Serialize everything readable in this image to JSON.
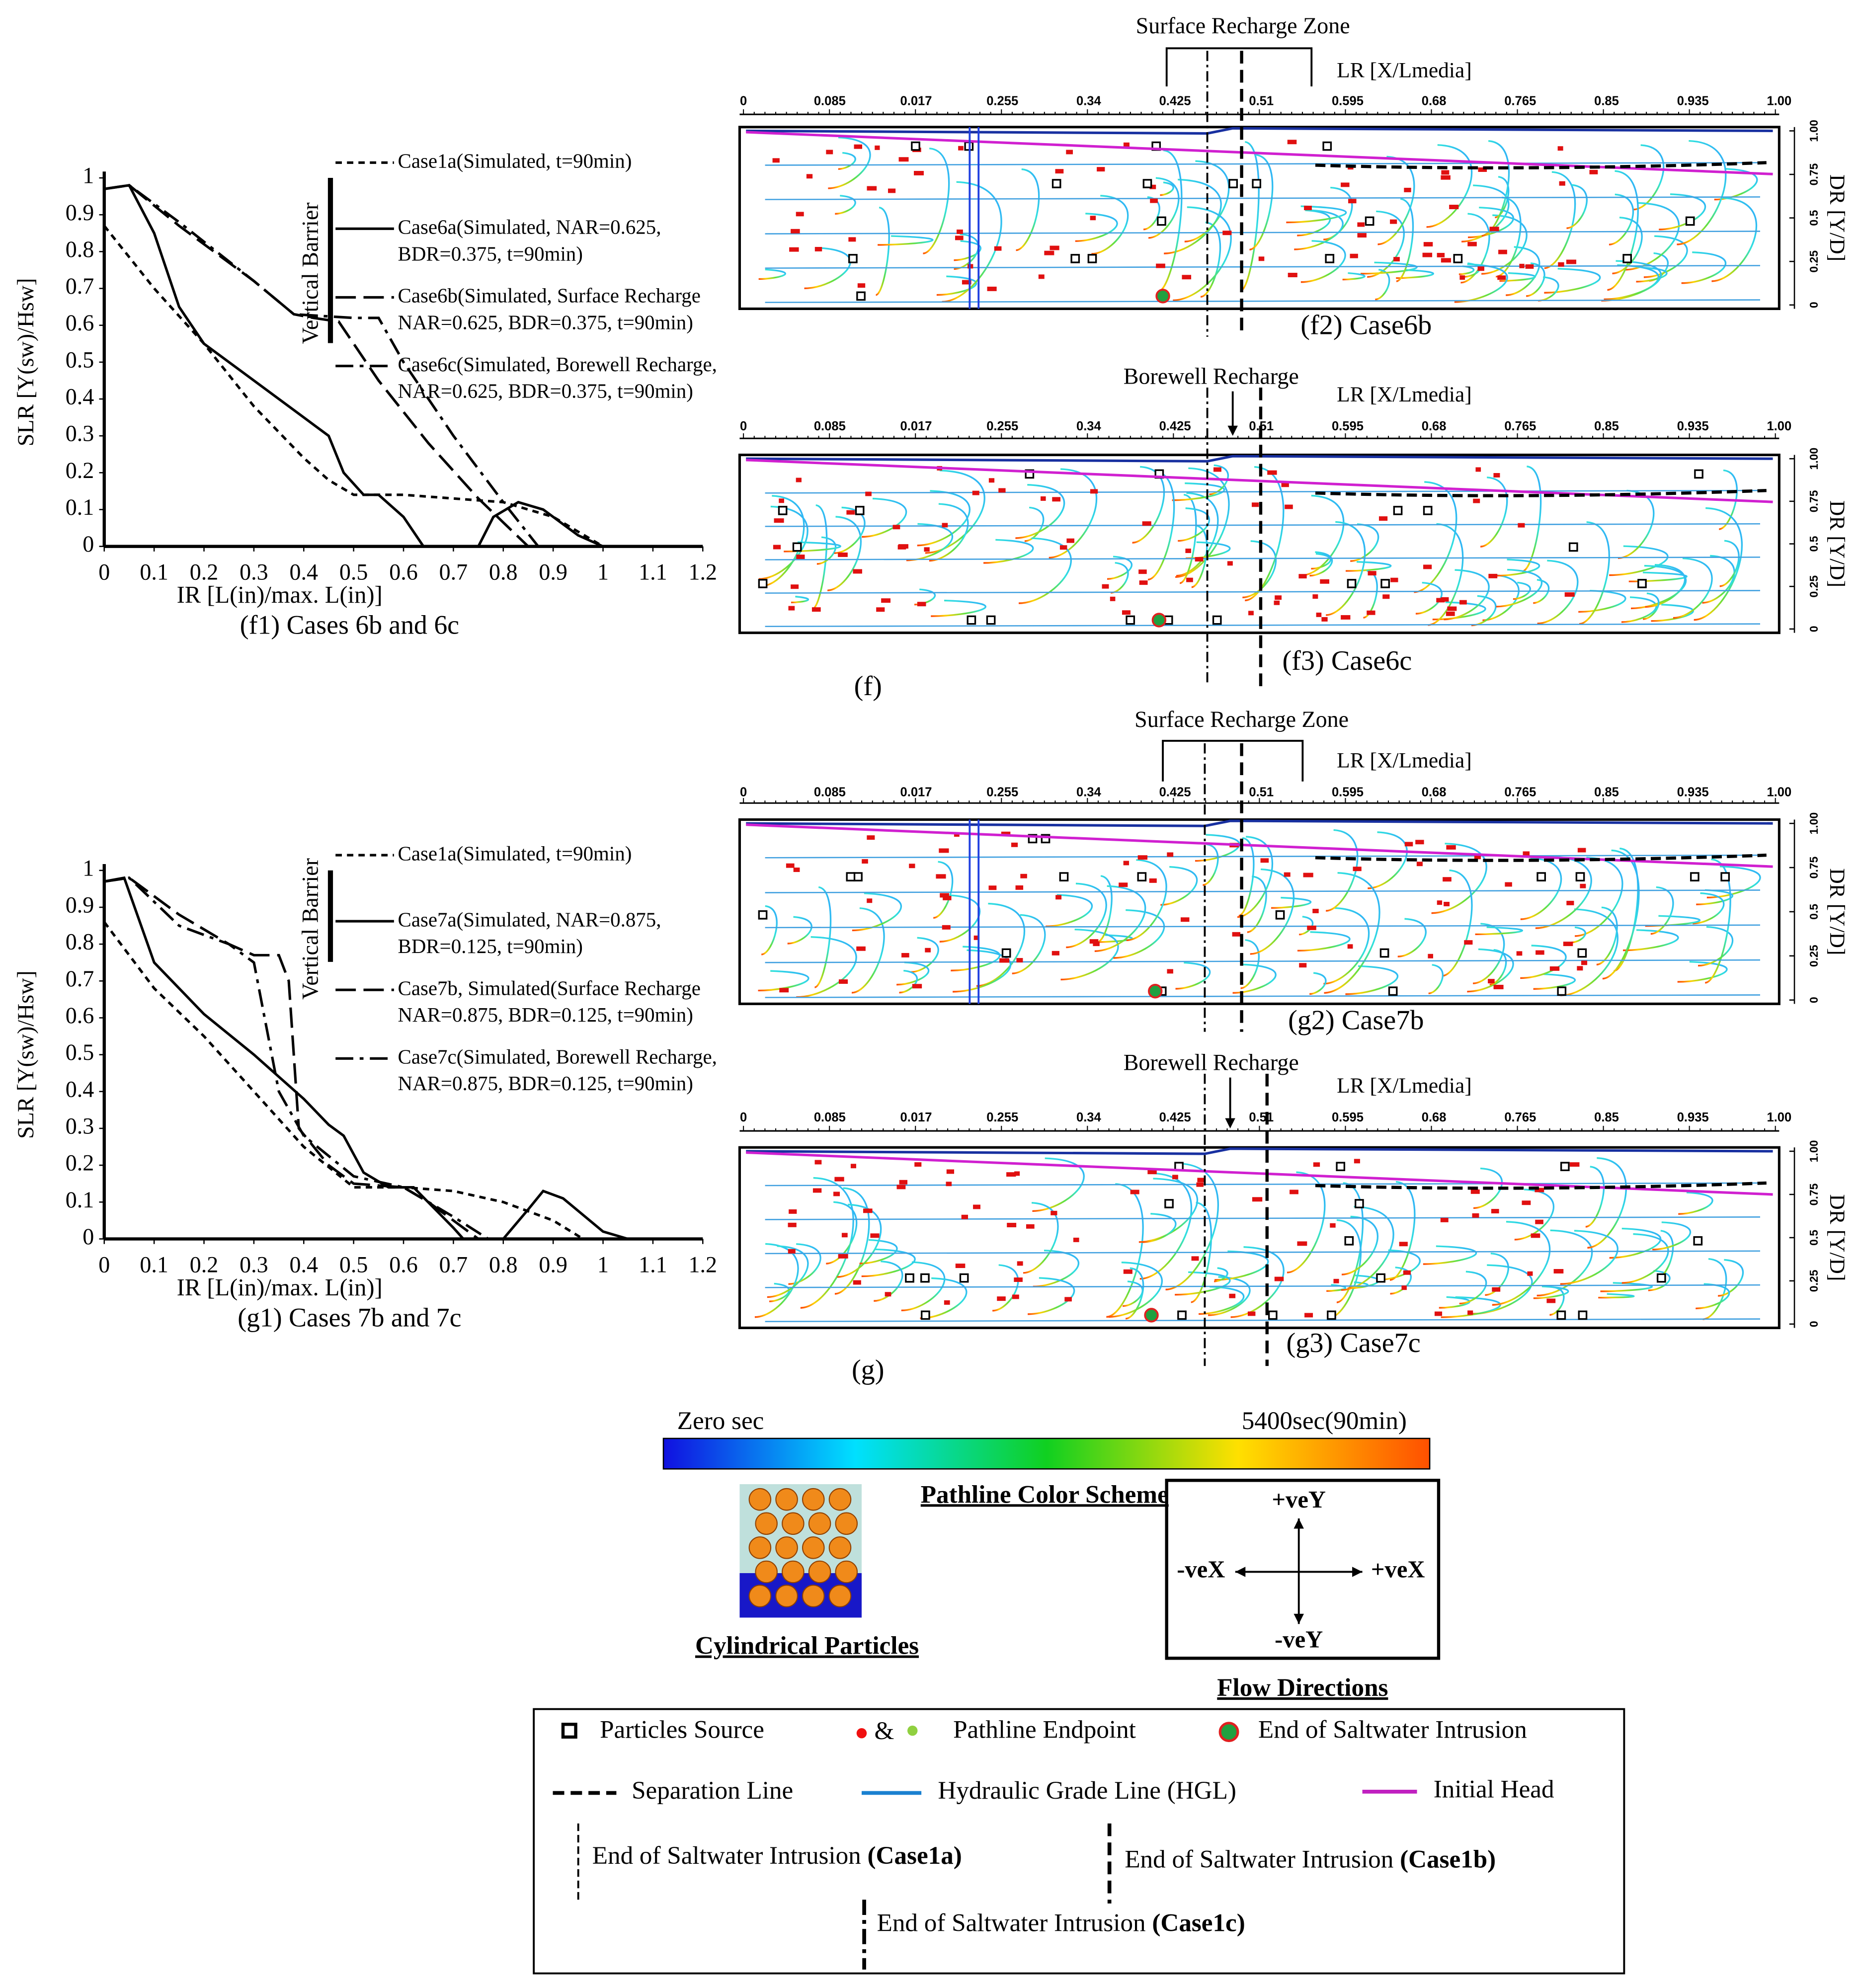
{
  "chart_data": [
    {
      "type": "line",
      "title": "(f1) Cases 6b and 6c",
      "x_label": "IR [L(in)/max. L(in)]",
      "y_label": "SLR [Y(sw)/Hsw]",
      "annotation": "Vertical Barrier",
      "xlim": [
        0,
        1.2
      ],
      "ylim": [
        0,
        1
      ],
      "xticks": [
        0,
        0.1,
        0.2,
        0.3,
        0.4,
        0.5,
        0.6,
        0.7,
        0.8,
        0.9,
        1,
        1.1,
        1.2
      ],
      "yticks": [
        0,
        0.1,
        0.2,
        0.3,
        0.4,
        0.5,
        0.6,
        0.7,
        0.8,
        0.9,
        1
      ],
      "series": [
        {
          "name": "Case1a(Simulated, t=90min)",
          "color": "#000000",
          "line_style": "dashed",
          "x": [
            0,
            0.1,
            0.2,
            0.3,
            0.4,
            0.45,
            0.5,
            0.6,
            0.7,
            0.8,
            0.9,
            1.0
          ],
          "values": [
            0.87,
            0.7,
            0.55,
            0.38,
            0.24,
            0.18,
            0.14,
            0.14,
            0.13,
            0.12,
            0.08,
            0
          ]
        },
        {
          "name": "Case6a(Simulated, NAR=0.625, BDR=0.375, t=90min)",
          "color": "#000000",
          "line_style": "solid",
          "x": [
            0,
            0.05,
            0.1,
            0.15,
            0.2,
            0.3,
            0.4,
            0.45,
            0.48,
            0.52,
            0.55,
            0.6,
            0.64,
            0.75,
            0.78,
            0.83,
            0.88,
            0.95,
            1.0
          ],
          "values": [
            0.97,
            0.98,
            0.85,
            0.65,
            0.55,
            0.45,
            0.35,
            0.3,
            0.2,
            0.14,
            0.14,
            0.08,
            0,
            0,
            0.08,
            0.12,
            0.1,
            0.03,
            0
          ]
        },
        {
          "name": "Case6b(Simulated, Surface Recharge NAR=0.625, BDR=0.375, t=90min)",
          "color": "#000000",
          "line_style": "long-dash",
          "x": [
            0,
            0.05,
            0.15,
            0.3,
            0.38,
            0.42,
            0.47,
            0.55,
            0.65,
            0.75,
            0.85
          ],
          "values": [
            0.97,
            0.98,
            0.87,
            0.72,
            0.63,
            0.62,
            0.61,
            0.45,
            0.28,
            0.13,
            0
          ]
        },
        {
          "name": "Case6c(Simulated, Borewell Recharge, NAR=0.625, BDR=0.375, t=90min)",
          "color": "#000000",
          "line_style": "dash-dot",
          "x": [
            0,
            0.05,
            0.15,
            0.3,
            0.38,
            0.5,
            0.55,
            0.6,
            0.7,
            0.8,
            0.87
          ],
          "values": [
            0.97,
            0.98,
            0.88,
            0.72,
            0.63,
            0.62,
            0.62,
            0.5,
            0.3,
            0.12,
            0
          ]
        }
      ]
    },
    {
      "type": "line",
      "title": "(g1) Cases 7b and 7c",
      "x_label": "IR [L(in)/max. L(in)]",
      "y_label": "SLR [Y(sw)/Hsw]",
      "annotation": "Vertical Barrier",
      "xlim": [
        0,
        1.2
      ],
      "ylim": [
        0,
        1
      ],
      "xticks": [
        0,
        0.1,
        0.2,
        0.3,
        0.4,
        0.5,
        0.6,
        0.7,
        0.8,
        0.9,
        1,
        1.1,
        1.2
      ],
      "yticks": [
        0,
        0.1,
        0.2,
        0.3,
        0.4,
        0.5,
        0.6,
        0.7,
        0.8,
        0.9,
        1
      ],
      "series": [
        {
          "name": "Case1a(Simulated, t=90min)",
          "color": "#000000",
          "line_style": "dashed",
          "x": [
            0,
            0.1,
            0.2,
            0.3,
            0.4,
            0.5,
            0.6,
            0.7,
            0.8,
            0.9,
            0.96
          ],
          "values": [
            0.86,
            0.68,
            0.55,
            0.4,
            0.25,
            0.14,
            0.14,
            0.13,
            0.1,
            0.05,
            0
          ]
        },
        {
          "name": "Case7a(Simulated, NAR=0.875, BDR=0.125, t=90min)",
          "color": "#000000",
          "line_style": "solid",
          "x": [
            0,
            0.04,
            0.1,
            0.2,
            0.3,
            0.4,
            0.45,
            0.48,
            0.52,
            0.57,
            0.62,
            0.7,
            0.72,
            0.8,
            0.85,
            0.88,
            0.92,
            1.0,
            1.05
          ],
          "values": [
            0.97,
            0.98,
            0.75,
            0.61,
            0.5,
            0.38,
            0.31,
            0.28,
            0.18,
            0.14,
            0.14,
            0.03,
            0,
            0,
            0.08,
            0.13,
            0.11,
            0.02,
            0
          ]
        },
        {
          "name": "Case7b, Simulated(Surface Recharge NAR=0.875, BDR=0.125, t=90min)",
          "color": "#000000",
          "line_style": "long-dash",
          "x": [
            0,
            0.05,
            0.15,
            0.25,
            0.3,
            0.35,
            0.37,
            0.39,
            0.45,
            0.5,
            0.6,
            0.65,
            0.75
          ],
          "values": [
            0.97,
            0.98,
            0.88,
            0.8,
            0.77,
            0.77,
            0.7,
            0.3,
            0.2,
            0.15,
            0.14,
            0.1,
            0
          ]
        },
        {
          "name": "Case7c(Simulated, Borewell Recharge, NAR=0.875, BDR=0.125, t=90min)",
          "color": "#000000",
          "line_style": "dash-dot",
          "x": [
            0,
            0.05,
            0.15,
            0.25,
            0.3,
            0.35,
            0.4,
            0.5,
            0.6,
            0.7,
            0.77
          ],
          "values": [
            0.97,
            0.98,
            0.85,
            0.8,
            0.75,
            0.4,
            0.28,
            0.17,
            0.14,
            0.06,
            0
          ]
        }
      ]
    }
  ],
  "panels": [
    {
      "header": "Surface Recharge Zone",
      "caption": "(f2) Case6b",
      "x_axis_label": "LR [X/Lmedia]",
      "y_axis_label": "DR [Y/D]",
      "x_tick_labels": [
        "0",
        "0.085",
        "0.017",
        "0.255",
        "0.34",
        "0.425",
        "0.51",
        "0.595",
        "0.68",
        "0.765",
        "0.85",
        "0.935",
        "1.00"
      ],
      "y_tick_labels": [
        "1.00",
        "0.75",
        "0.5",
        "0.25",
        "0"
      ]
    },
    {
      "header": "Borewell Recharge",
      "caption": "(f3) Case6c",
      "x_axis_label": "LR [X/Lmedia]",
      "y_axis_label": "DR [Y/D]",
      "x_tick_labels": [
        "0",
        "0.085",
        "0.017",
        "0.255",
        "0.34",
        "0.425",
        "0.51",
        "0.595",
        "0.68",
        "0.765",
        "0.85",
        "0.935",
        "1.00"
      ],
      "y_tick_labels": [
        "1.00",
        "0.75",
        "0.5",
        "0.25",
        "0"
      ]
    },
    {
      "header": "Surface Recharge Zone",
      "caption": "(g2) Case7b",
      "x_axis_label": "LR [X/Lmedia]",
      "y_axis_label": "DR [Y/D]",
      "x_tick_labels": [
        "0",
        "0.085",
        "0.017",
        "0.255",
        "0.34",
        "0.425",
        "0.51",
        "0.595",
        "0.68",
        "0.765",
        "0.85",
        "0.935",
        "1.00"
      ],
      "y_tick_labels": [
        "1.00",
        "0.75",
        "0.5",
        "0.25",
        "0"
      ]
    },
    {
      "header": "Borewell Recharge",
      "caption": "(g3) Case7c",
      "x_axis_label": "LR [X/Lmedia]",
      "y_axis_label": "DR [Y/D]",
      "x_tick_labels": [
        "0",
        "0.085",
        "0.017",
        "0.255",
        "0.34",
        "0.425",
        "0.51",
        "0.595",
        "0.68",
        "0.765",
        "0.85",
        "0.935",
        "1.00"
      ],
      "y_tick_labels": [
        "1.00",
        "0.75",
        "0.5",
        "0.25",
        "0"
      ]
    }
  ],
  "group_labels": [
    "(f)",
    "(g)"
  ],
  "color_scale": {
    "start": "Zero sec",
    "end": "5400sec(90min)",
    "title": "Pathline Color Scheme"
  },
  "particles_caption": "Cylindrical Particles",
  "flow_directions": {
    "title": "Flow Directions",
    "up": "+veY",
    "left": "-veX",
    "right": "+veX",
    "down": "-veY"
  },
  "legend": {
    "particles_source": "Particles Source",
    "and": "&",
    "pathline_endpoint": "Pathline Endpoint",
    "end_intrusion": "End of Saltwater Intrusion",
    "separation_line": "Separation Line",
    "hgl": "Hydraulic Grade Line (HGL)",
    "initial_head": "Initial Head",
    "cases": [
      {
        "text": "End of Saltwater Intrusion ",
        "case": "(Case1a)"
      },
      {
        "text": "End of Saltwater Intrusion ",
        "case": "(Case1b)"
      },
      {
        "text": "End of Saltwater Intrusion ",
        "case": "(Case1c)"
      }
    ]
  }
}
